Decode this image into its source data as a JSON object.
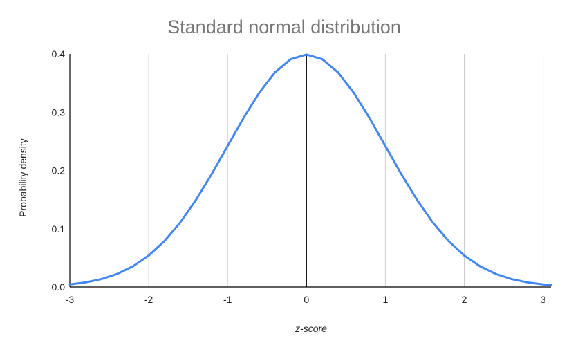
{
  "chart_data": {
    "type": "line",
    "title": "Standard normal distribution",
    "xlabel": "z-score",
    "ylabel": "Probability density",
    "xlim": [
      -3,
      3.1
    ],
    "ylim": [
      0,
      0.4
    ],
    "x_ticks": [
      -3,
      -2,
      -1,
      0,
      1,
      2,
      3
    ],
    "x_tick_labels": [
      "-3",
      "-2",
      "-1",
      "0",
      "1",
      "2",
      "3"
    ],
    "y_ticks": [
      0,
      0.1,
      0.2,
      0.3,
      0.4
    ],
    "y_tick_labels": [
      "0.0",
      "0.1",
      "0.2",
      "0.3",
      "0.4"
    ],
    "grid": "vertical",
    "legend": "none",
    "series": [
      {
        "color": "#4285f4",
        "x": [
          -3.0,
          -2.8,
          -2.6,
          -2.4,
          -2.2,
          -2.0,
          -1.8,
          -1.6,
          -1.4,
          -1.2,
          -1.0,
          -0.8,
          -0.6,
          -0.4,
          -0.2,
          0.0,
          0.2,
          0.4,
          0.6,
          0.8,
          1.0,
          1.2,
          1.4,
          1.6,
          1.8,
          2.0,
          2.2,
          2.4,
          2.6,
          2.8,
          3.0,
          3.1
        ],
        "y": [
          0.0044,
          0.0079,
          0.0136,
          0.0224,
          0.0355,
          0.054,
          0.079,
          0.1109,
          0.1497,
          0.1942,
          0.242,
          0.2897,
          0.3332,
          0.3683,
          0.391,
          0.3989,
          0.391,
          0.3683,
          0.3332,
          0.2897,
          0.242,
          0.1942,
          0.1497,
          0.1109,
          0.079,
          0.054,
          0.0355,
          0.0224,
          0.0136,
          0.0079,
          0.0044,
          0.0033
        ]
      }
    ]
  },
  "colors": {
    "title": "#757575",
    "text": "#222222",
    "axis": "#000000",
    "grid": "#cccccc",
    "line": "#4285f4"
  }
}
